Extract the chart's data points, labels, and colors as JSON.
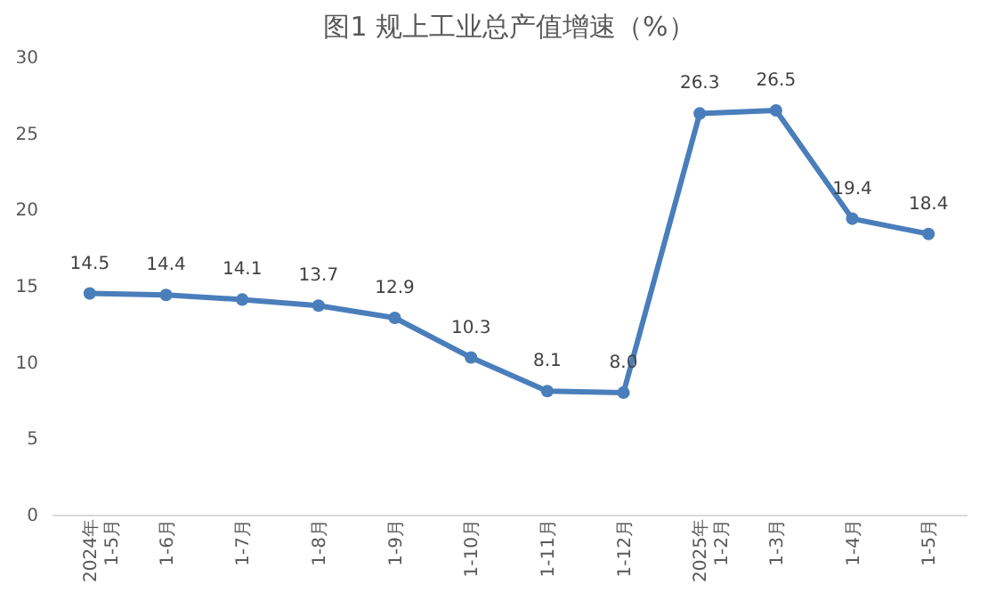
{
  "chart_data": {
    "type": "line",
    "title": "图1 规上工业总产值增速（%）",
    "categories": [
      "2024年\n1-5月",
      "1-6月",
      "1-7月",
      "1-8月",
      "1-9月",
      "1-10月",
      "1-11月",
      "1-12月",
      "2025年\n1-2月",
      "1-3月",
      "1-4月",
      "1-5月"
    ],
    "series": [
      {
        "color": "#4a7ebb",
        "values": [
          14.5,
          14.4,
          14.1,
          13.7,
          12.9,
          10.3,
          8.1,
          8.0,
          26.3,
          26.5,
          19.4,
          18.4
        ],
        "value_labels": [
          "14.5",
          "14.4",
          "14.1",
          "13.7",
          "12.9",
          "10.3",
          "8.1",
          "8.0",
          "26.3",
          "26.5",
          "19.4",
          "18.4"
        ]
      }
    ],
    "ylim": [
      0,
      30
    ],
    "yticks": [
      0,
      5,
      10,
      15,
      20,
      25,
      30
    ],
    "grid": false,
    "marker": "circle",
    "line_style": "solid",
    "legend": false
  }
}
